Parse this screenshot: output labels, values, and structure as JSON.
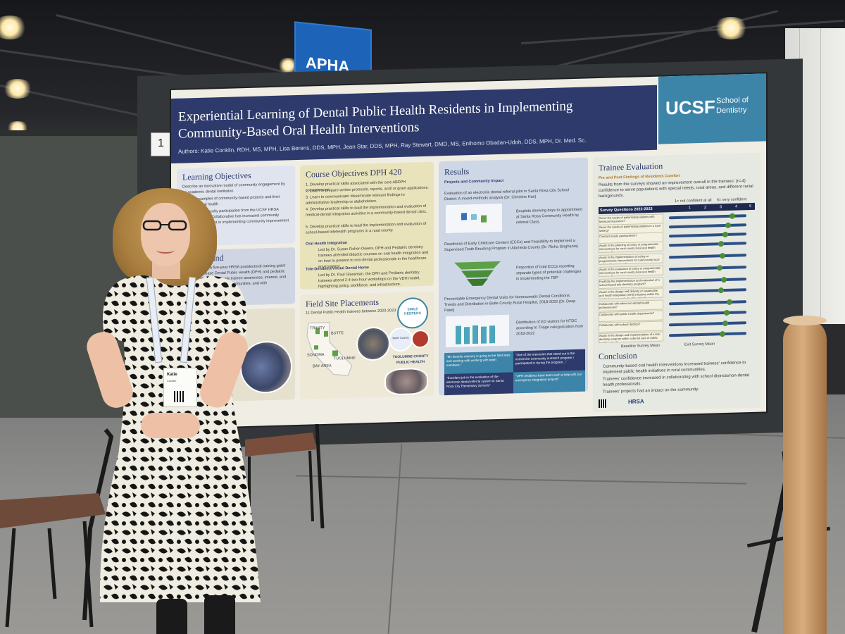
{
  "scene": {
    "description_colors": {
      "poster_header": "#2d3a6b",
      "ucsf_blue": "#3c84a8",
      "course_yellow": "#e9e3bb",
      "results_blue": "#cdd7e6"
    }
  },
  "banner": {
    "logo": "APHA"
  },
  "poster": {
    "board_number": "1",
    "title_line1": "Experiential Learning of Dental Public Health Residents in Implementing",
    "title_line2": "Community-Based Oral Health Interventions",
    "authors": "Authors: Katie Conklin, RDH, MS, MPH, Lisa Berens, DDS, MPH, Jean Star, DDS, MPH, Ray Stewart, DMD, MS, Enihomo Obadan-Udoh, DDS, MPH, Dr. Med. Sc.",
    "ucsf": {
      "mark": "UCSF",
      "school": "School of Dentistry"
    },
    "learning_objectives": {
      "title": "Learning Objectives",
      "items": [
        "Describe an innovative model of community engagement by an academic dental institution",
        "Provide examples of community-based projects and their impact on oral health",
        "Describe how faculty participation from the UCSF HRSA Dental Wellness Collaborative has increased community partner engagement in implementing community improvement efforts"
      ]
    },
    "background": {
      "title": "Background",
      "text": "UCSF received a five-year HRSA postdoctoral training grant (2019) to increase Dental Public Health (DPH) and pediatric dentistry (PD) postgraduate trainee awareness, interest, and willingness to work in rural communities, and with underserved populations."
    },
    "course": {
      "title": "Course Objectives DPH 420",
      "items": [
        "1. Develop practical skills associated with the core ABDPH competencies",
        "2. Learn to prepare written protocols, reports, and/ or grant applications.",
        "3. Learn to communicate/ disseminate relevant findings to administrative leadership or stakeholders.",
        "4. Develop practical skills to lead the implementation and evaluation of medical-dental integration activities in a community-based dental clinic.",
        "5. Develop practical skills to lead the implementation and evaluation of school-based telehealth programs in a rural county."
      ],
      "oral_health_title": "Oral Health Integration",
      "oral_health_text": "Led by Dr. Susan Fisher-Owens, DPH and Pediatric dentistry trainees attended didactic courses on oral health integration and on how to present to non-dental professionals in the healthcare environment.",
      "tele_title": "Tele-Dentistry/Virtual Dental Home",
      "tele_text": "Led by Dr. Paul Glassman, the DPH and Pediatric dentistry trainees attend 2-4 two-hour workshops on the VDH model, highlighting policy, workforce, and infrastructure."
    },
    "field_sites": {
      "title": "Field Site Placements",
      "subtitle": "11 Dental Public Health trainees between 2020-2023",
      "counties": [
        "TRINITY",
        "BUTTE",
        "SONOMA",
        "BAY AREA",
        "TUOLUMNE"
      ],
      "logos": [
        "SMILE KEEPERS",
        "Butte County",
        "TUOLUMNE COUNTY PUBLIC HEALTH"
      ]
    },
    "results": {
      "title": "Results",
      "subtitle": "Projects and Community Impact",
      "item1": "Evaluation of an electronic dental referral pilot in Santa Rosa City School District: A mixed-methods analysis (Dr. Christine Hao)",
      "item1_caption": "Boxplots showing days to appointment at Santa Rosa Community Health by referral Class.",
      "item2": "Readiness of Early Childcare Centers (ECCs) and Feasibility to Implement a Supervised Tooth Brushing Program in Alameda County (Dr. Richa Singhania)",
      "item2_caption": "Proportion of total ECCs reporting separate types of potential challenges in implementing the TBP",
      "item3": "Preventable Emergency Dental Visits for Nontraumatic Dental Conditions: Trends and Distribution in Butte County Rural Hospital, 2018-2022 (Dr. Deep Patel)",
      "item3_caption": "Distribution of ED visitors for NTDC according to Triage categorization from 2018-2022",
      "quotes": [
        "\"My favorite memory is going to the field sites and working with working with team members.\"",
        "\"One of the memories that stand out is the immersive community outreach program I participated in during the program...\"",
        "\"Excellent job in the evaluation of the electronic dental referral system in Santa Rosa City Elementary Schools\"",
        "\"UPH residents have been such a help with our emergency integration project!\""
      ]
    },
    "trainee": {
      "title": "Trainee Evaluation",
      "subtitle": "Pre and Post Findings of Residents Comfort",
      "text": "Results from the surveys showed an improvement overall in the trainees' (n=4) confidence to serve populations with special needs, rural areas, and different racial backgrounds.",
      "scale_left": "1= not confident at all",
      "scale_right": "5= very confident",
      "header": "Survey Questions 2022-2023",
      "scale": [
        "1",
        "2",
        "3",
        "4",
        "5"
      ],
      "questions": [
        "Serve the needs of patients/populations with Medicaid insurance?",
        "Serve the needs of patients/populations in a rural setting?",
        "Conduct needs assessments?",
        "Assist in the planning of policy or programmatic interventions for rural county local oral health programs?",
        "Assist in the implementation of policy or programmatic interventions for rural county local oral health programs?",
        "Assist in the evaluation of policy or programmatic interventions for rural county local oral health programs?",
        "Facilitate the implementation and evaluation of a school-based tele-dentistry program?",
        "Assist in the design and delivery of sustainable oral health integration (OHI) initiatives within the medical care or public health setting?",
        "Collaborate with other non-dental health professionals?",
        "Collaborate with public health departments?",
        "Collaborate with school districts?",
        "Assist in the design and implementation of a tele-dentistry program within a dental care or public health setting?"
      ],
      "legend": [
        "Baseline Survey Mean",
        "Exit Survey Mean"
      ],
      "conclusion_title": "Conclusion",
      "conclusions": [
        "Community-based oral health interventions increased trainees' confidence to implement public health initiatives in rural communities.",
        "Trainees' confidence increased in collaborating with school districts/non-dental health professionals.",
        "Trainees' projects had an impact on the community."
      ],
      "funder": "HRSA"
    }
  },
  "badge": {
    "name": "Katie",
    "line2": "Conklin"
  }
}
